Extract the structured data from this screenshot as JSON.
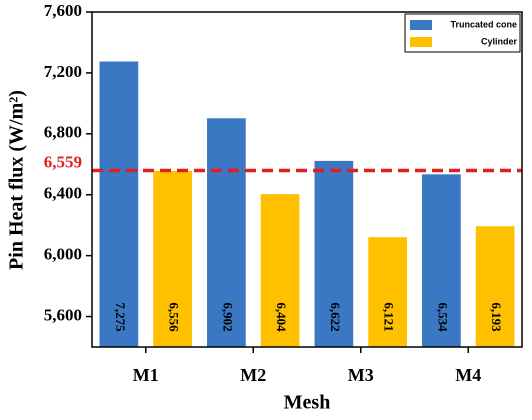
{
  "chart_data": {
    "type": "bar",
    "x_label": "Mesh",
    "y_label": "Pin Heat flux (W/m²)",
    "categories": [
      "M1",
      "M2",
      "M3",
      "M4"
    ],
    "series": [
      {
        "name": "Truncated cone",
        "color": "#3a78c4",
        "values": [
          7275,
          6902,
          6622,
          6534
        ],
        "value_labels": [
          "7,275",
          "6,902",
          "6,622",
          "6,534"
        ]
      },
      {
        "name": "Cylinder",
        "color": "#ffc000",
        "values": [
          6556,
          6404,
          6121,
          6193
        ],
        "value_labels": [
          "6,556",
          "6,404",
          "6,121",
          "6,193"
        ]
      }
    ],
    "ylim": [
      5400,
      7600
    ],
    "yticks": [
      {
        "value": 5600,
        "label": "5,600"
      },
      {
        "value": 6000,
        "label": "6,000"
      },
      {
        "value": 6400,
        "label": "6,400"
      },
      {
        "value": 6800,
        "label": "6,800"
      },
      {
        "value": 7200,
        "label": "7,200"
      },
      {
        "value": 7600,
        "label": "7,600"
      }
    ],
    "reference_line": {
      "value": 6559,
      "label": "6,559",
      "color": "#e0201c"
    },
    "legend": "top-right"
  }
}
